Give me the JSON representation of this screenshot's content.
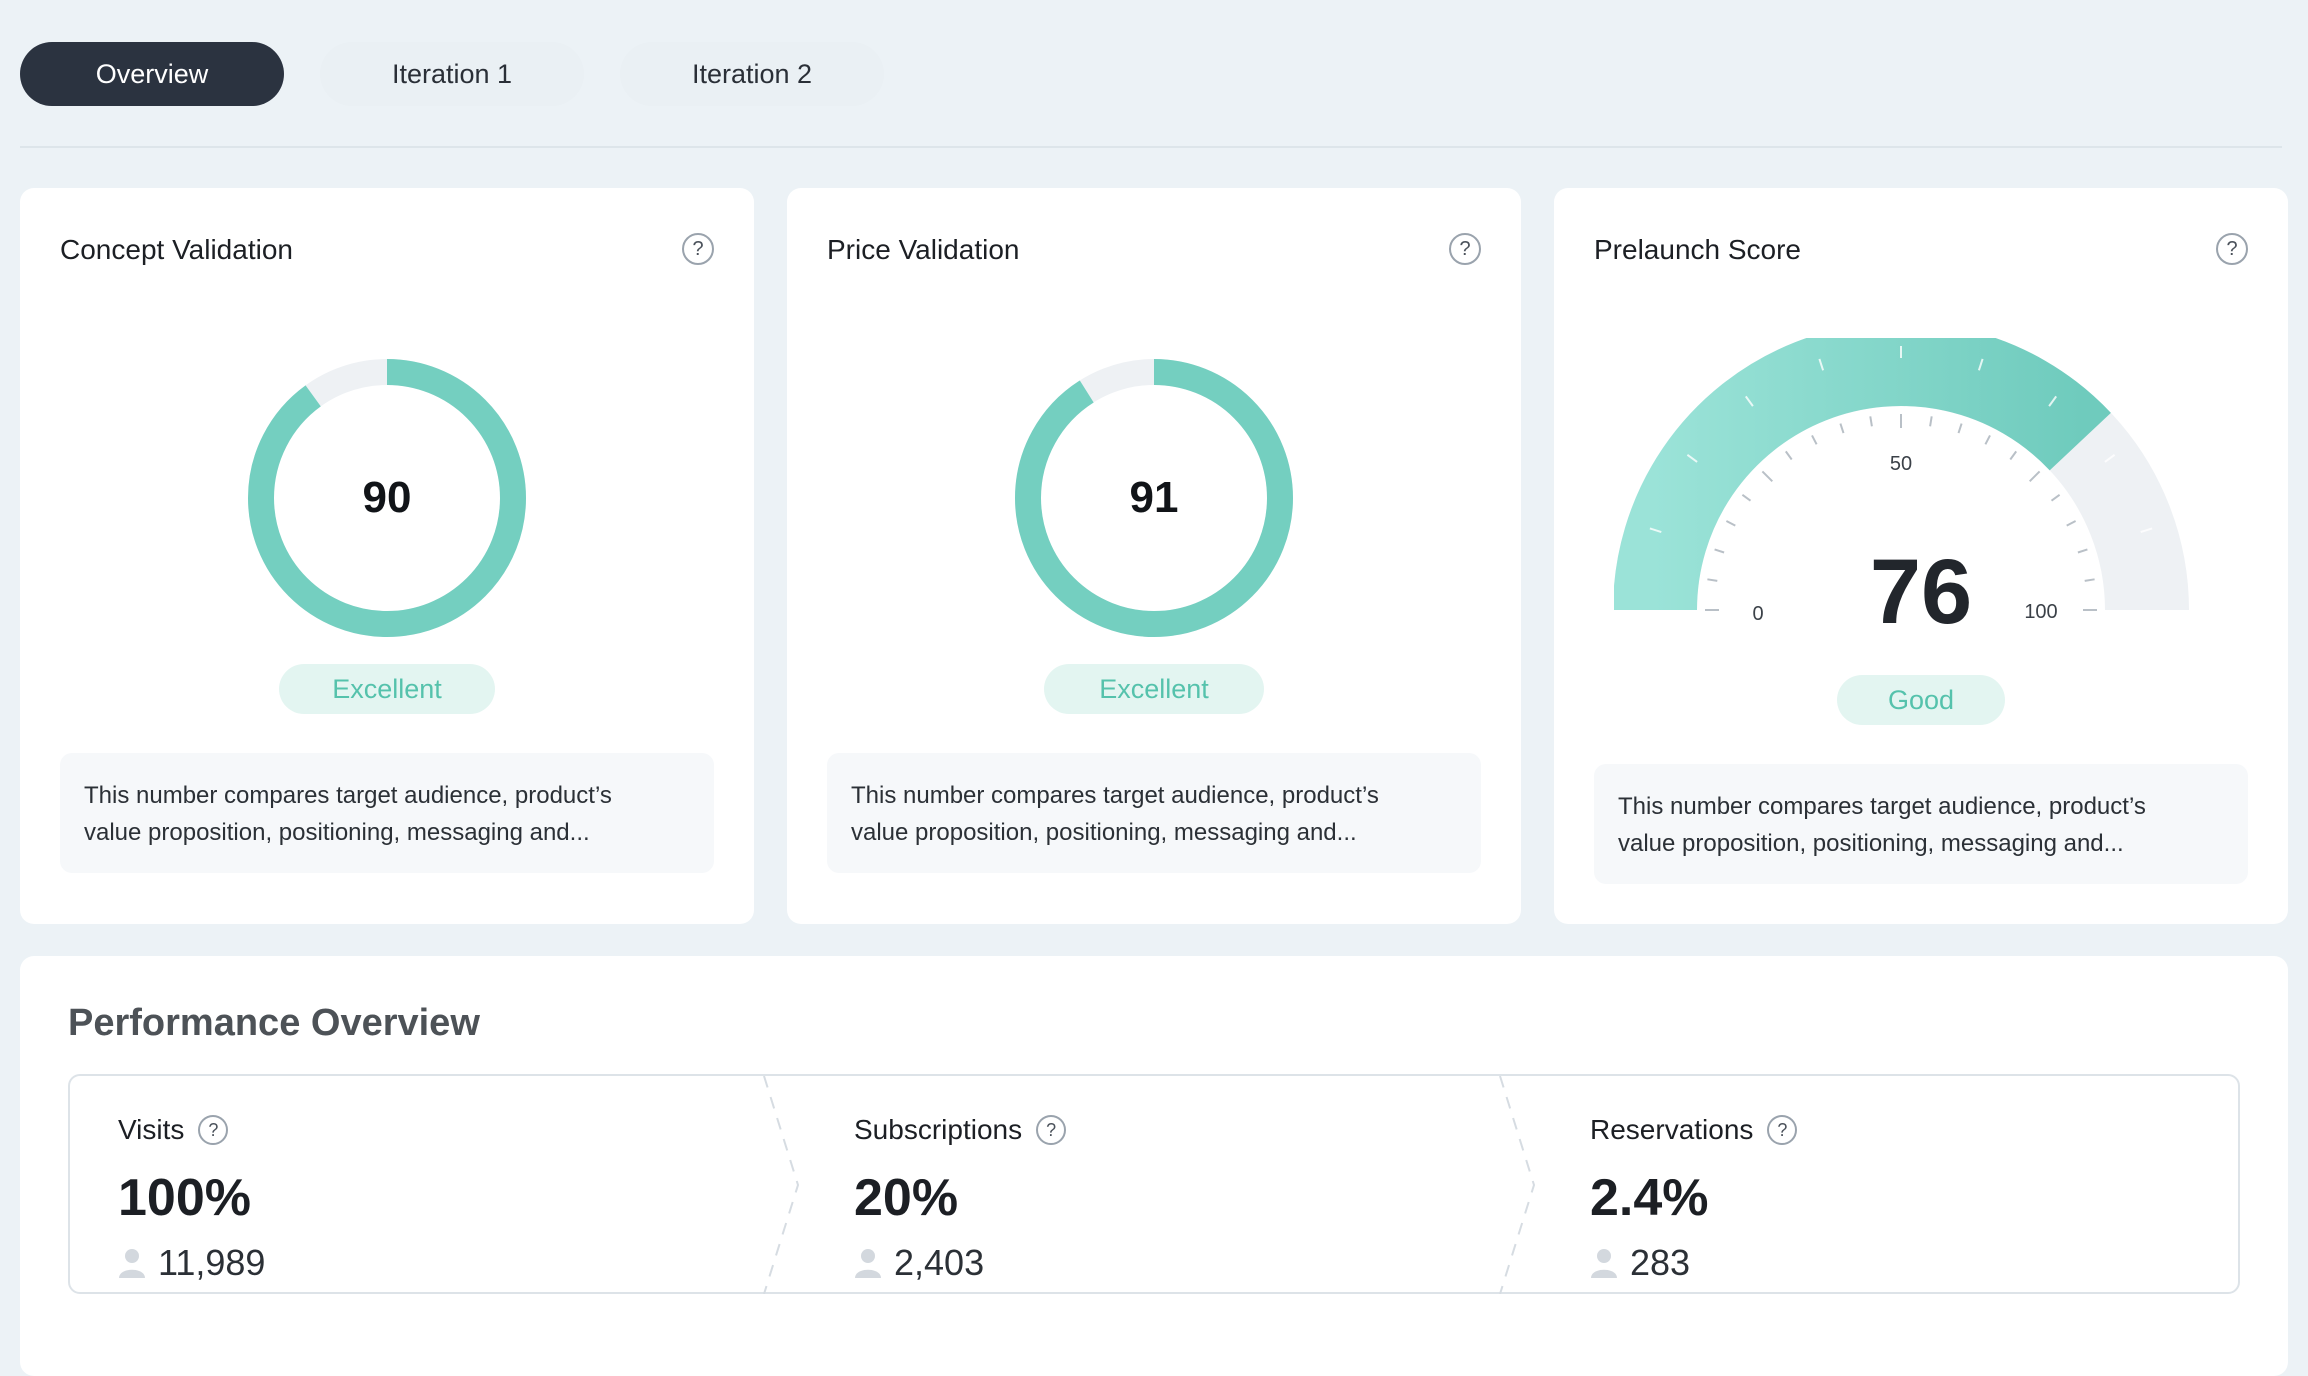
{
  "tabs": [
    {
      "label": "Overview",
      "active": true
    },
    {
      "label": "Iteration 1",
      "active": false
    },
    {
      "label": "Iteration 2",
      "active": false
    }
  ],
  "cards": {
    "concept": {
      "title": "Concept Validation",
      "help": "?",
      "score": "90",
      "score_fraction": 0.9,
      "rating": "Excellent",
      "description_line1": "This number compares target audience, product’s",
      "description_line2": "value proposition, positioning, messaging and..."
    },
    "price": {
      "title": "Price Validation",
      "help": "?",
      "score": "91",
      "score_fraction": 0.91,
      "rating": "Excellent",
      "description_line1": "This number compares target audience, product’s",
      "description_line2": "value proposition, positioning, messaging and..."
    },
    "prelaunch": {
      "title": "Prelaunch Score",
      "help": "?",
      "score": "76",
      "score_fraction": 0.76,
      "scale_min": "0",
      "scale_mid": "50",
      "scale_max": "100",
      "rating": "Good",
      "description_line1": "This number compares target audience, product’s",
      "description_line2": "value proposition, positioning, messaging and..."
    }
  },
  "performance": {
    "title": "Performance Overview",
    "metrics": [
      {
        "label": "Visits",
        "percent": "100%",
        "count": "11,989"
      },
      {
        "label": "Subscriptions",
        "percent": "20%",
        "count": "2,403"
      },
      {
        "label": "Reservations",
        "percent": "2.4%",
        "count": "283"
      }
    ]
  },
  "colors": {
    "accent": "#74cfc0",
    "accent_light": "#9be3d8",
    "track": "#eef1f4",
    "badge_bg": "#e3f5f1",
    "badge_text": "#55c2ac",
    "active_tab": "#2b3340"
  },
  "icons": {
    "help": "help-circle-icon",
    "user": "user-icon"
  }
}
